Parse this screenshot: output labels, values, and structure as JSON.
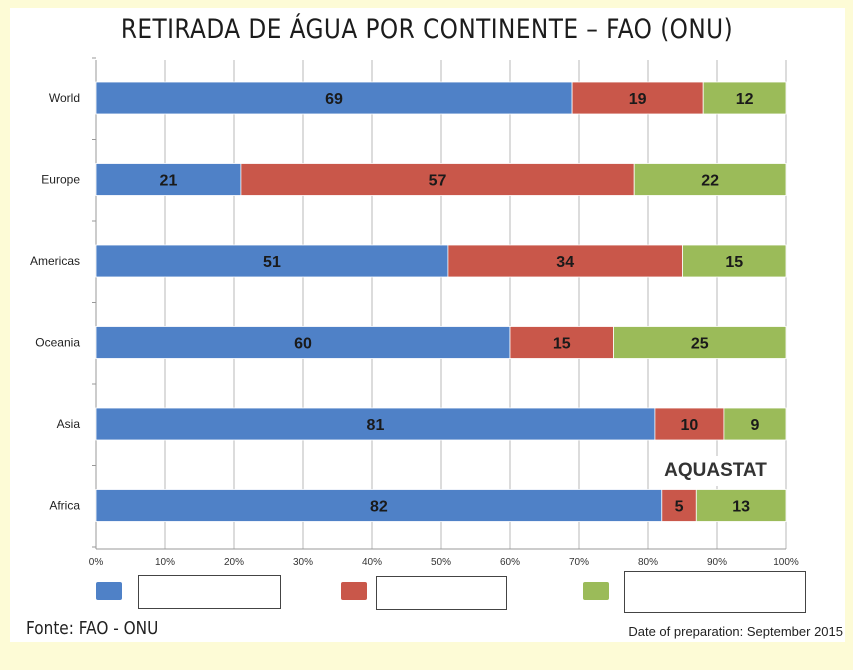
{
  "page": {
    "title": "RETIRADA DE ÁGUA POR CONTINENTE – FAO (ONU)",
    "source": "Fonte: FAO - ONU",
    "prepared": "Date of preparation: September 2015",
    "watermark": "AQUASTAT"
  },
  "colors": {
    "series": [
      "#4f81c7",
      "#c9574a",
      "#9bbb59"
    ],
    "grid": "#b8b8b8",
    "background": "#fdfbd6"
  },
  "chart_data": {
    "type": "bar",
    "orientation": "horizontal",
    "stacked": true,
    "categories": [
      "World",
      "Europe",
      "Americas",
      "Oceania",
      "Asia",
      "Africa"
    ],
    "series": [
      {
        "values": [
          69,
          21,
          51,
          60,
          81,
          82
        ]
      },
      {
        "values": [
          19,
          57,
          34,
          15,
          10,
          5
        ]
      },
      {
        "values": [
          12,
          22,
          15,
          25,
          9,
          13
        ]
      }
    ],
    "xticks": [
      "0%",
      "10%",
      "20%",
      "30%",
      "40%",
      "50%",
      "60%",
      "70%",
      "80%",
      "90%",
      "100%"
    ],
    "xlim": [
      0,
      100
    ],
    "grid": true,
    "legend": "bottom"
  }
}
